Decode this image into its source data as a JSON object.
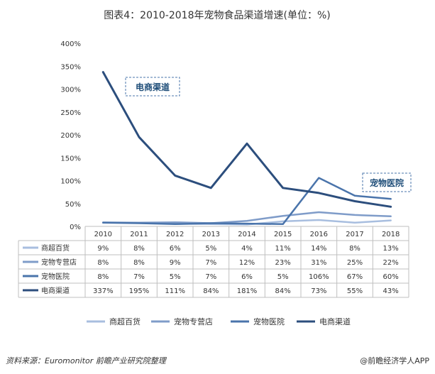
{
  "chart_data": {
    "type": "line",
    "title": "图表4：2010-2018年宠物食品渠道增速(单位：%)",
    "categories": [
      "2010",
      "2011",
      "2012",
      "2013",
      "2014",
      "2015",
      "2016",
      "2017",
      "2018"
    ],
    "ylim": [
      0,
      400
    ],
    "yticks": [
      "0%",
      "50%",
      "100%",
      "150%",
      "200%",
      "250%",
      "300%",
      "350%",
      "400%"
    ],
    "series": [
      {
        "name": "商超百货",
        "color": "#a8bedf",
        "values": [
          9,
          8,
          6,
          5,
          4,
          11,
          14,
          8,
          13
        ],
        "labels": [
          "9%",
          "8%",
          "6%",
          "5%",
          "4%",
          "11%",
          "14%",
          "8%",
          "13%"
        ]
      },
      {
        "name": "宠物专营店",
        "color": "#7f9cc9",
        "values": [
          8,
          8,
          9,
          7,
          12,
          23,
          31,
          25,
          22
        ],
        "labels": [
          "8%",
          "8%",
          "9%",
          "7%",
          "12%",
          "23%",
          "31%",
          "25%",
          "22%"
        ]
      },
      {
        "name": "宠物医院",
        "color": "#4a74ab",
        "values": [
          8,
          7,
          5,
          7,
          6,
          5,
          106,
          67,
          60
        ],
        "labels": [
          "8%",
          "7%",
          "5%",
          "7%",
          "6%",
          "5%",
          "106%",
          "67%",
          "60%"
        ]
      },
      {
        "name": "电商渠道",
        "color": "#2c4e7d",
        "values": [
          337,
          195,
          111,
          84,
          181,
          84,
          73,
          55,
          43
        ],
        "labels": [
          "337%",
          "195%",
          "111%",
          "84%",
          "181%",
          "84%",
          "73%",
          "55%",
          "43%"
        ]
      }
    ],
    "annotations": [
      "电商渠道",
      "宠物医院"
    ],
    "grid": false,
    "legend": "bottom"
  },
  "source": "资料来源：Euromonitor 前瞻产业研究院整理",
  "brand": "@前瞻经济学人APP"
}
